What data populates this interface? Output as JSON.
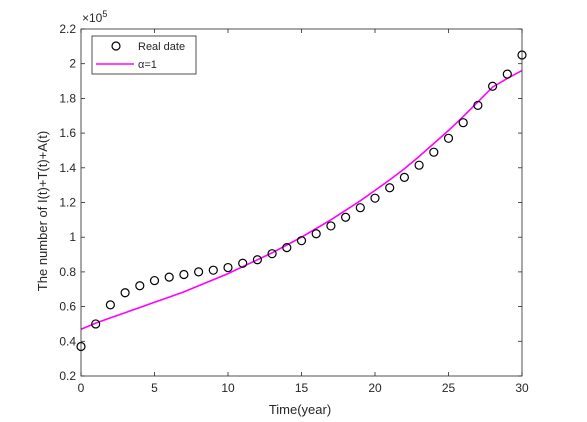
{
  "chart_data": {
    "type": "line",
    "xlabel": "Time(year)",
    "ylabel": "The number of I(t)+T(t)+A(t)",
    "y_multiplier": "×10",
    "y_multiplier_exp": "5",
    "xlim": [
      0,
      30
    ],
    "ylim": [
      0.2,
      2.2
    ],
    "x_ticks": [
      0,
      5,
      10,
      15,
      20,
      25,
      30
    ],
    "y_ticks": [
      0.2,
      0.4,
      0.6,
      0.8,
      1,
      1.2,
      1.4,
      1.6,
      1.8,
      2,
      2.2
    ],
    "grid": false,
    "legend_position": "top-left",
    "series": [
      {
        "name": "Real date",
        "kind": "scatter",
        "marker": "open-circle",
        "color": "#000000",
        "x": [
          0,
          1,
          2,
          3,
          4,
          5,
          6,
          7,
          8,
          9,
          10,
          11,
          12,
          13,
          14,
          15,
          16,
          17,
          18,
          19,
          20,
          21,
          22,
          23,
          24,
          25,
          26,
          27,
          28,
          29,
          30
        ],
        "y": [
          0.37,
          0.5,
          0.61,
          0.68,
          0.72,
          0.75,
          0.77,
          0.785,
          0.8,
          0.81,
          0.825,
          0.85,
          0.87,
          0.905,
          0.94,
          0.98,
          1.02,
          1.065,
          1.115,
          1.17,
          1.225,
          1.285,
          1.345,
          1.415,
          1.49,
          1.57,
          1.66,
          1.76,
          1.87,
          1.94,
          2.05
        ]
      },
      {
        "name": "α=1",
        "kind": "line",
        "color": "#ff00ff",
        "x": [
          0,
          1,
          2,
          3,
          4,
          5,
          6,
          7,
          8,
          9,
          10,
          11,
          12,
          13,
          14,
          15,
          16,
          17,
          18,
          19,
          20,
          21,
          22,
          23,
          24,
          25,
          26,
          27,
          28,
          29,
          30
        ],
        "y": [
          0.47,
          0.505,
          0.535,
          0.565,
          0.595,
          0.625,
          0.655,
          0.685,
          0.72,
          0.755,
          0.79,
          0.83,
          0.87,
          0.91,
          0.955,
          1.0,
          1.05,
          1.1,
          1.155,
          1.21,
          1.27,
          1.33,
          1.395,
          1.465,
          1.54,
          1.615,
          1.695,
          1.78,
          1.865,
          1.915,
          1.96
        ]
      }
    ]
  }
}
